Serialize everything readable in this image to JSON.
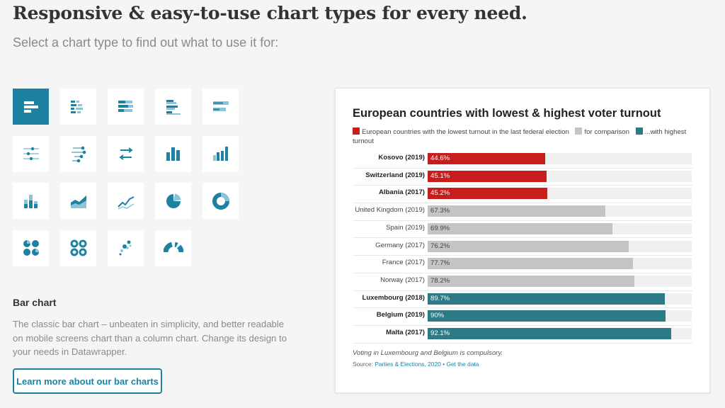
{
  "page": {
    "headline": "Responsive & easy-to-use chart types for every need.",
    "subhead": "Select a chart type to find out what to use it for:"
  },
  "chart_types": [
    {
      "icon": "bar-chart-icon",
      "active": true
    },
    {
      "icon": "split-bars-icon",
      "active": false
    },
    {
      "icon": "stacked-bars-icon",
      "active": false
    },
    {
      "icon": "grouped-bars-icon",
      "active": false
    },
    {
      "icon": "bullet-bars-icon",
      "active": false
    },
    {
      "icon": "dot-plot-icon",
      "active": false
    },
    {
      "icon": "range-plot-icon",
      "active": false
    },
    {
      "icon": "arrow-plot-icon",
      "active": false
    },
    {
      "icon": "column-chart-icon",
      "active": false
    },
    {
      "icon": "grouped-columns-icon",
      "active": false
    },
    {
      "icon": "stacked-columns-icon",
      "active": false
    },
    {
      "icon": "area-chart-icon",
      "active": false
    },
    {
      "icon": "line-chart-icon",
      "active": false
    },
    {
      "icon": "pie-chart-icon",
      "active": false
    },
    {
      "icon": "donut-chart-icon",
      "active": false
    },
    {
      "icon": "multiple-pies-icon",
      "active": false
    },
    {
      "icon": "multiple-donuts-icon",
      "active": false
    },
    {
      "icon": "scatter-plot-icon",
      "active": false
    },
    {
      "icon": "election-donut-icon",
      "active": false
    }
  ],
  "selected_type": {
    "title": "Bar chart",
    "description": "The classic bar chart – unbeaten in simplicity, and better readable on mobile screens chart than a column chart. Change its design to your needs in Datawrapper.",
    "button_label": "Learn more about our bar charts"
  },
  "colors": {
    "accent": "#1d81a2",
    "red": "#c71e1d",
    "gray": "#c4c4c4",
    "teal": "#2b7a85"
  },
  "chart_data": {
    "type": "bar",
    "title": "European countries with lowest & highest voter turnout",
    "legend": [
      {
        "label": "European countries with the lowest turnout in the last federal election",
        "color": "#c71e1d"
      },
      {
        "label": "for comparison",
        "color": "#c4c4c4"
      },
      {
        "label": "...with highest turnout",
        "color": "#2b7a85"
      }
    ],
    "categories": [
      "Kosovo (2019)",
      "Switzerland (2019)",
      "Albania (2017)",
      "United Kingdom (2019)",
      "Spain (2019)",
      "Germany (2017)",
      "France (2017)",
      "Norway (2017)",
      "Luxembourg (2018)",
      "Belgium (2019)",
      "Malta (2017)"
    ],
    "values": [
      44.6,
      45.1,
      45.2,
      67.3,
      69.9,
      76.2,
      77.7,
      78.2,
      89.7,
      90,
      92.1
    ],
    "value_labels": [
      "44.6%",
      "45.1%",
      "45.2%",
      "67.3%",
      "69.9%",
      "76.2%",
      "77.7%",
      "78.2%",
      "89.7%",
      "90%",
      "92.1%"
    ],
    "groups": [
      "lowest",
      "lowest",
      "lowest",
      "comparison",
      "comparison",
      "comparison",
      "comparison",
      "comparison",
      "highest",
      "highest",
      "highest"
    ],
    "xlim": [
      0,
      100
    ],
    "note": "Voting in Luxembourg and Belgium is compulsory.",
    "source_prefix": "Source:",
    "source_link": "Parties & Elections, 2020",
    "separator": "•",
    "data_link": "Get the data"
  }
}
